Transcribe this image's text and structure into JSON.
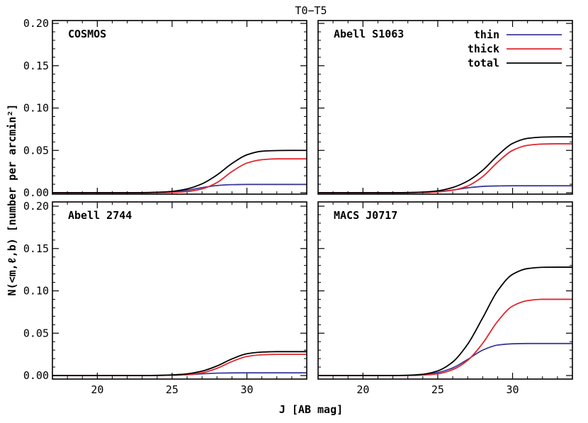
{
  "chart_data": {
    "type": "line",
    "title": "T0−T5",
    "xlabel": "J [AB mag]",
    "ylabel": "N(<m,ℓ,b) [number per arcmin²]",
    "xlim": [
      17,
      34
    ],
    "ylim": [
      0,
      0.2
    ],
    "x_ticks": [
      "20",
      "25",
      "30"
    ],
    "y_ticks": [
      "0.00",
      "0.05",
      "0.10",
      "0.15",
      "0.20"
    ],
    "legend": {
      "placement": "top-right of upper-right panel",
      "entries": [
        {
          "label": "thin",
          "color": "#3b3b9b"
        },
        {
          "label": "thick",
          "color": "#e0262e"
        },
        {
          "label": "total",
          "color": "#000000"
        }
      ]
    },
    "series_colors": {
      "thin": "#3b3b9b",
      "thick": "#e0262e",
      "total": "#000000"
    },
    "panels": [
      {
        "label": "COSMOS",
        "x": [
          17,
          22,
          23,
          24,
          25,
          26,
          27,
          28,
          29,
          30,
          31,
          32,
          33,
          34
        ],
        "series": [
          {
            "name": "thin",
            "values": [
              0,
              0.0,
              0.0001,
              0.0004,
              0.0012,
              0.003,
              0.006,
              0.0085,
              0.0095,
              0.0098,
              0.0098,
              0.0098,
              0.0098,
              0.0098
            ]
          },
          {
            "name": "thick",
            "values": [
              0,
              0.0,
              0.0,
              0.0001,
              0.0004,
              0.0014,
              0.0045,
              0.012,
              0.025,
              0.035,
              0.039,
              0.04,
              0.04,
              0.04
            ]
          },
          {
            "name": "total",
            "values": [
              0,
              0.0,
              0.0001,
              0.0005,
              0.0016,
              0.0045,
              0.0105,
              0.021,
              0.0345,
              0.0448,
              0.049,
              0.0498,
              0.05,
              0.05
            ]
          }
        ]
      },
      {
        "label": "Abell S1063",
        "x": [
          17,
          22,
          23,
          24,
          25,
          26,
          27,
          28,
          29,
          30,
          31,
          32,
          33,
          34
        ],
        "series": [
          {
            "name": "thin",
            "values": [
              0,
              0.0,
              0.0001,
              0.0004,
              0.0012,
              0.0032,
              0.0058,
              0.0075,
              0.008,
              0.0082,
              0.0082,
              0.0082,
              0.0082,
              0.0082
            ]
          },
          {
            "name": "thick",
            "values": [
              0,
              0.0,
              0.0001,
              0.0003,
              0.001,
              0.003,
              0.008,
              0.019,
              0.036,
              0.05,
              0.056,
              0.0575,
              0.0578,
              0.0578
            ]
          },
          {
            "name": "total",
            "values": [
              0,
              0.0,
              0.0002,
              0.0007,
              0.0022,
              0.0062,
              0.0138,
              0.0265,
              0.044,
              0.0582,
              0.0642,
              0.0657,
              0.066,
              0.066
            ]
          }
        ]
      },
      {
        "label": "Abell 2744",
        "x": [
          17,
          22,
          23,
          24,
          25,
          26,
          27,
          28,
          29,
          30,
          31,
          32,
          33,
          34
        ],
        "series": [
          {
            "name": "thin",
            "values": [
              0,
              0.0,
              0.0,
              0.0001,
              0.0004,
              0.001,
              0.002,
              0.0028,
              0.0031,
              0.0032,
              0.0032,
              0.0032,
              0.0032,
              0.0032
            ]
          },
          {
            "name": "thick",
            "values": [
              0,
              0.0,
              0.0,
              0.0001,
              0.0003,
              0.001,
              0.0032,
              0.0085,
              0.0165,
              0.0225,
              0.0245,
              0.025,
              0.025,
              0.025
            ]
          },
          {
            "name": "total",
            "values": [
              0,
              0.0,
              0.0,
              0.0002,
              0.0007,
              0.002,
              0.0052,
              0.0113,
              0.0196,
              0.0257,
              0.0277,
              0.0282,
              0.0282,
              0.0282
            ]
          }
        ]
      },
      {
        "label": "MACS J0717",
        "x": [
          17,
          22,
          23,
          24,
          25,
          26,
          27,
          28,
          29,
          30,
          31,
          32,
          33,
          34
        ],
        "series": [
          {
            "name": "thin",
            "values": [
              0,
              0.0,
              0.0002,
              0.001,
              0.0035,
              0.009,
              0.019,
              0.03,
              0.036,
              0.0375,
              0.0378,
              0.0378,
              0.0378,
              0.0378
            ]
          },
          {
            "name": "thick",
            "values": [
              0,
              0.0,
              0.0001,
              0.0005,
              0.002,
              0.007,
              0.018,
              0.038,
              0.064,
              0.082,
              0.0885,
              0.09,
              0.09,
              0.09
            ]
          },
          {
            "name": "total",
            "values": [
              0,
              0.0,
              0.0003,
              0.0015,
              0.0055,
              0.016,
              0.037,
              0.068,
              0.1,
              0.1195,
              0.1263,
              0.1278,
              0.128,
              0.128
            ]
          }
        ]
      }
    ]
  }
}
